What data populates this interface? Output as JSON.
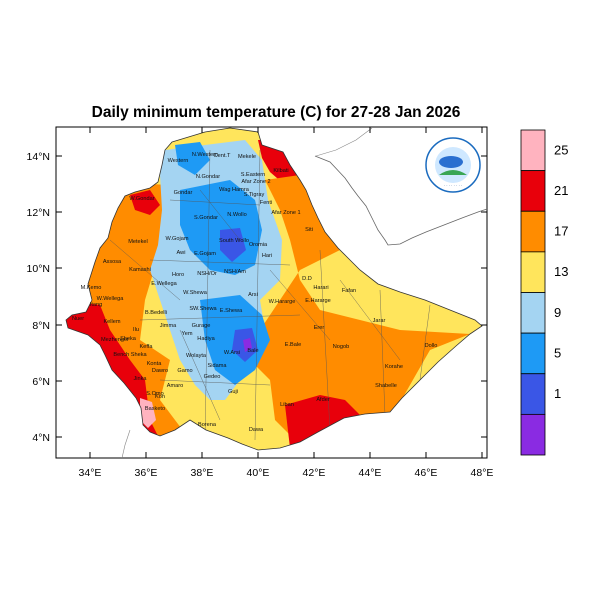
{
  "title": "Daily minimum temperature (C) for 27-28 Jan 2026",
  "axes": {
    "lat_ticks": [
      "4°N",
      "6°N",
      "8°N",
      "10°N",
      "12°N",
      "14°N"
    ],
    "lon_ticks": [
      "34°E",
      "36°E",
      "38°E",
      "40°E",
      "42°E",
      "44°E",
      "46°E",
      "48°E"
    ]
  },
  "colorbar": {
    "levels": [
      "1",
      "5",
      "9",
      "13",
      "17",
      "21",
      "25"
    ],
    "colors": [
      "#8a2be2",
      "#3a56e6",
      "#1e9af5",
      "#a4d4f2",
      "#ffe55c",
      "#ff8c00",
      "#e8000b",
      "#ffb3bf"
    ]
  },
  "regions": [
    "N.Western",
    "Cent.T",
    "Mekele",
    "S.Eastern",
    "Western",
    "N.Gondar",
    "Wag Hamra",
    "Afar Zone 2",
    "Kilbati",
    "S.Tigray",
    "Gondar",
    "W.Gondar",
    "S.Gondar",
    "N.Wollo",
    "Fenti",
    "Afar Zone 1",
    "Siti",
    "Metekel",
    "W.Gojam",
    "E.Gojam",
    "South Wollo",
    "Oromia",
    "Hari",
    "Awi",
    "Assosa",
    "Kamashi",
    "Horo",
    "NSH/Or",
    "NSH/Am",
    "E.Wellega",
    "W.Wellega",
    "M.Kemo",
    "Itang",
    "Nuer",
    "Kellem",
    "W.Shewa",
    "Arsi",
    "W.Hararge",
    "E.Hararge",
    "Fafan",
    "Harari",
    "D.D",
    "B.Bedelli",
    "Jimma",
    "SW.Shewa",
    "E.Shewa",
    "Ilu",
    "Keffa",
    "Bench Sheka",
    "Sheka",
    "Mezhenger",
    "Yem",
    "Hadiya",
    "Gurage",
    "Wolayta",
    "Sidama",
    "Gamo",
    "Gedeo",
    "Bale",
    "Erer",
    "Jarar",
    "Nogob",
    "Dollo",
    "Korahe",
    "Shabelle",
    "Liban",
    "Afder",
    "Borena",
    "Dawa",
    "S.Omo",
    "Konta",
    "Amaro",
    "Guji",
    "W.Arsi",
    "Jinka",
    "Kon",
    "Basketo",
    "Dawro",
    "E.Bale"
  ]
}
